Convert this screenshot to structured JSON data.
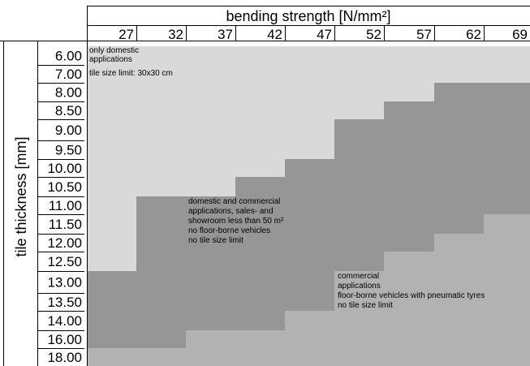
{
  "chart_data": {
    "type": "table",
    "title": "",
    "xlabel": "bending strength [N/mm²]",
    "ylabel": "tile thickness [mm]",
    "columns": [
      "27",
      "32",
      "37",
      "42",
      "47",
      "52",
      "57",
      "62",
      "69"
    ],
    "rows": [
      "6.00",
      "7.00",
      "8.00",
      "8.50",
      "9.00",
      "9.50",
      "10.00",
      "10.50",
      "11.00",
      "11.50",
      "12.00",
      "12.50",
      "13.00",
      "13.50",
      "14.00",
      "16.00",
      "18.00"
    ],
    "zones": [
      {
        "id": "domestic",
        "color": "#d9d9d9",
        "label_lines": [
          "only domestic",
          "applications",
          "tile size limit: 30x30 cm"
        ]
      },
      {
        "id": "domestic-commercial",
        "color": "#969696",
        "label_lines": [
          "domestic and commercial",
          "applications, sales- and",
          "showroom less than 50 m²",
          "no floor-borne vehicles",
          "no tile size limit"
        ]
      },
      {
        "id": "commercial",
        "color": "#b2b2b2",
        "label_lines": [
          "commercial",
          "applications",
          "floor-borne vehicles with pneumatic tyres",
          "no tile size limit"
        ]
      }
    ],
    "domestic_up_to_row": [
      "12.50",
      "10.50",
      "10.50",
      "10.00",
      "9.50",
      "8.50",
      "8.00",
      "7.00",
      "7.00"
    ],
    "domestic_commercial_up_to_row": [
      "16.00",
      "16.00",
      "14.00",
      "14.00",
      "13.50",
      "12.50",
      "12.00",
      "11.50",
      "11.00"
    ]
  }
}
